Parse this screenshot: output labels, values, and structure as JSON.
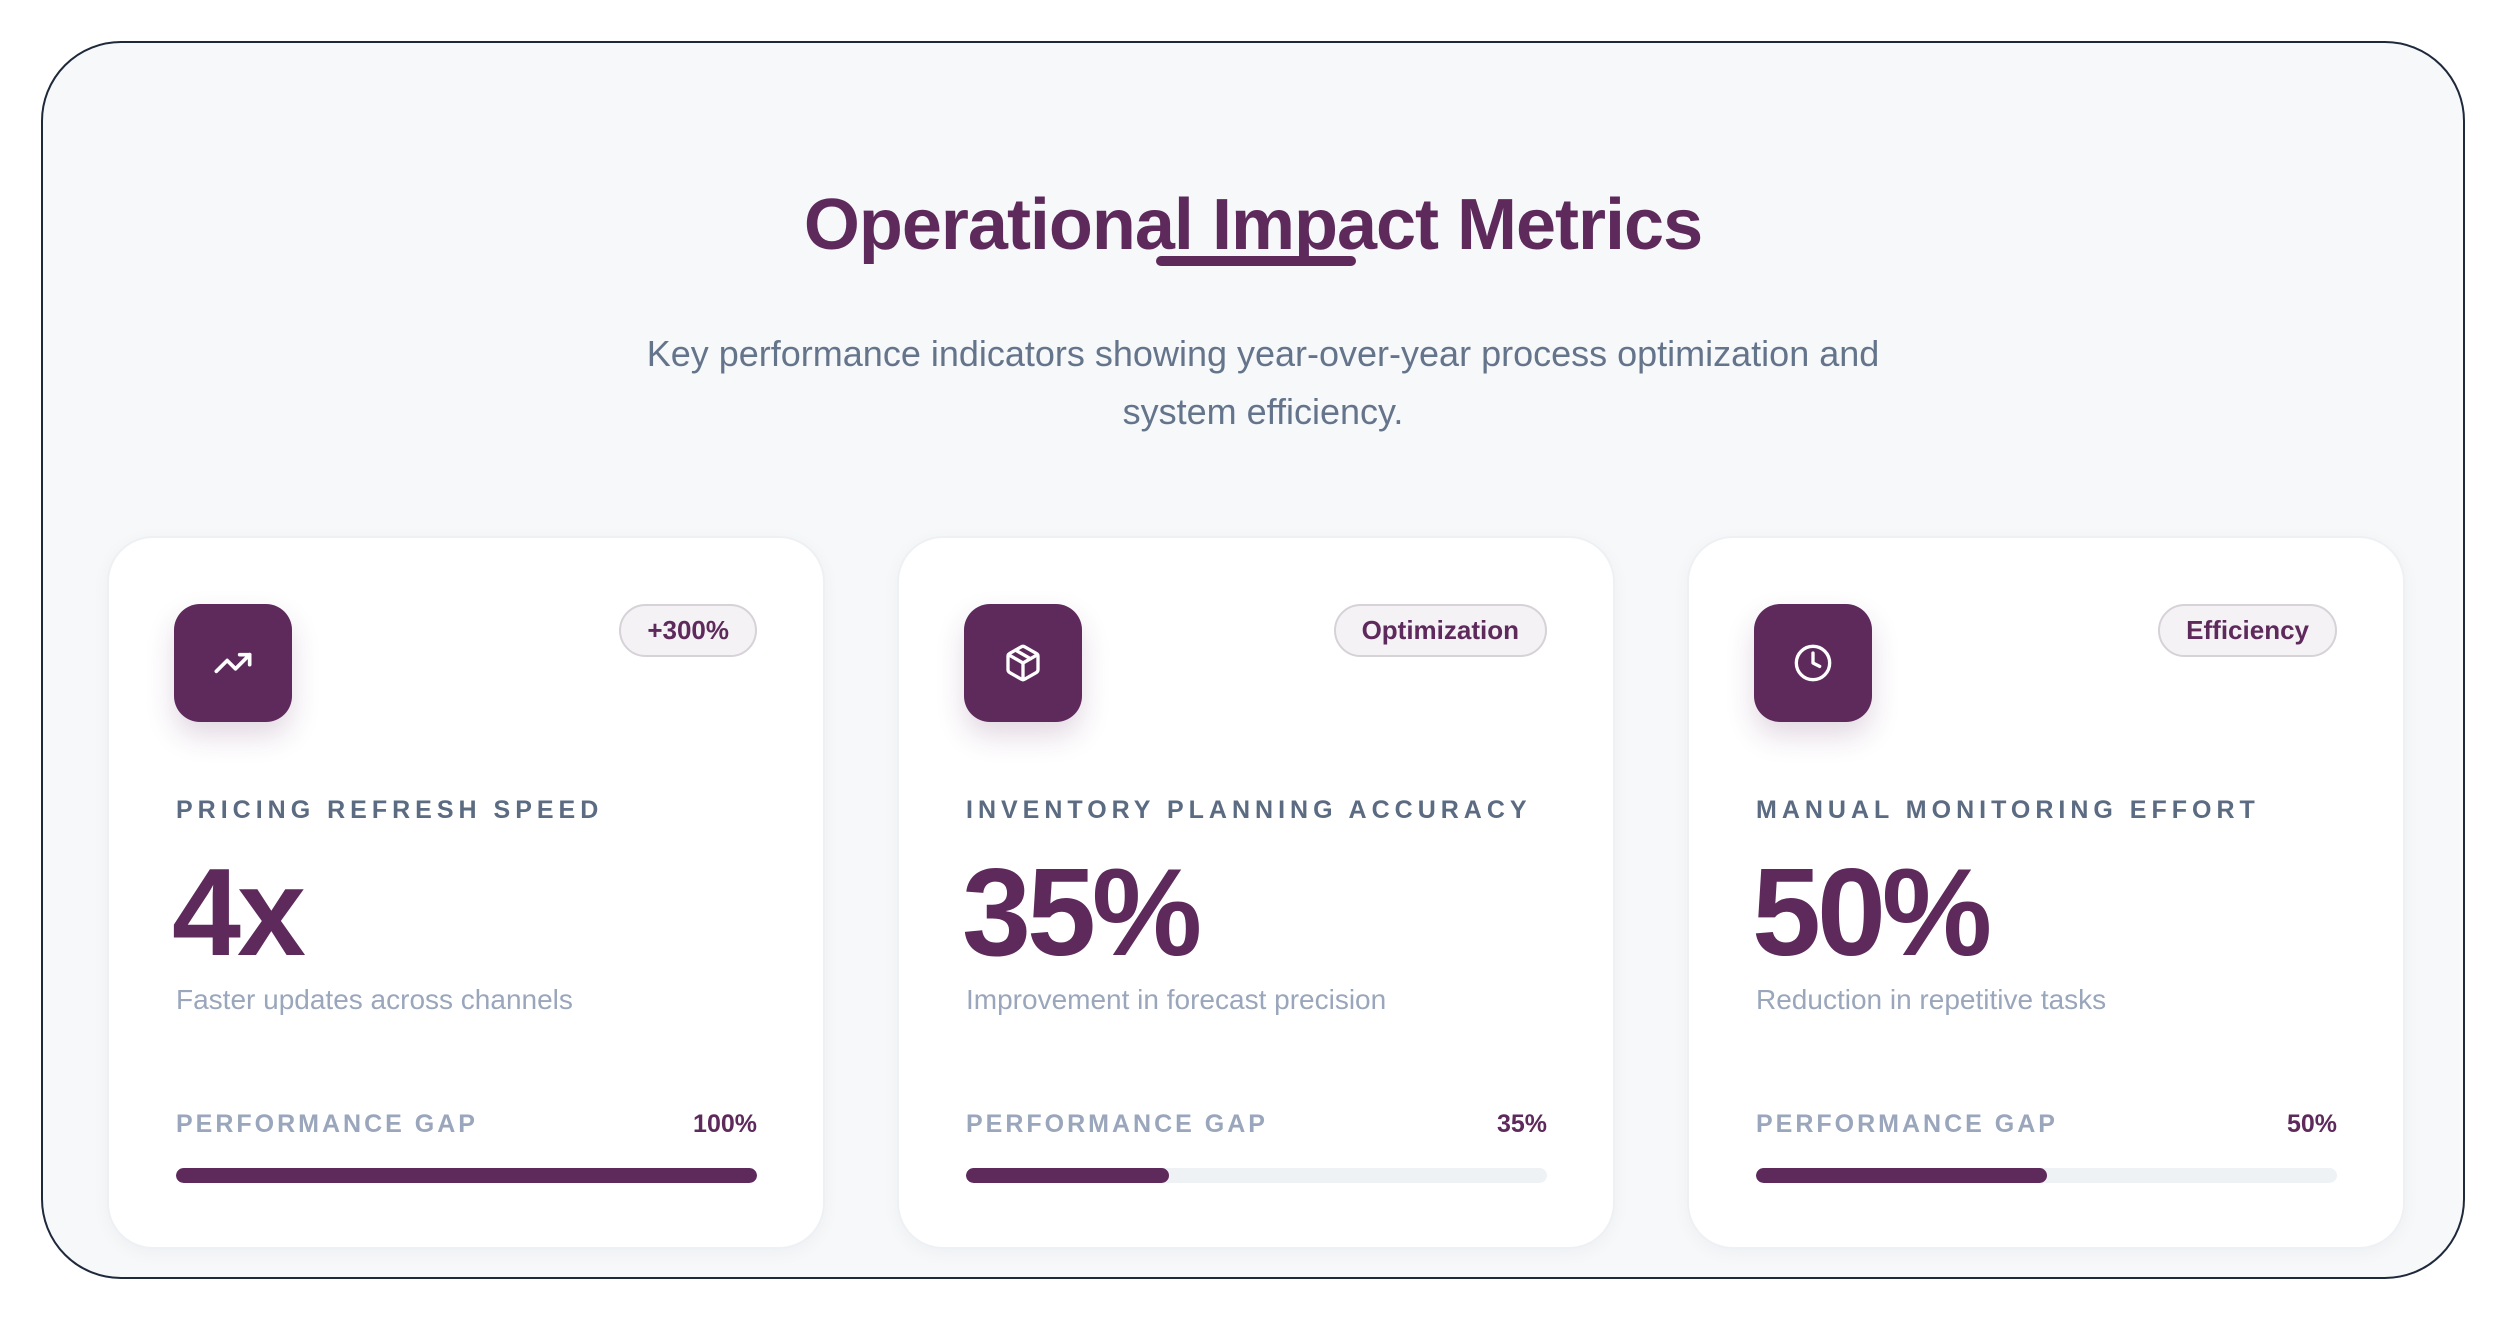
{
  "header": {
    "title": "Operational Impact Metrics",
    "subtitle": "Key performance indicators showing year-over-year process optimization and system efficiency."
  },
  "theme": {
    "accent": "#5e2a5c",
    "background": "#f6f8fa",
    "card": "#ffffff",
    "muted_text": "#64748b",
    "track": "#eff2f5"
  },
  "cards": [
    {
      "icon": "trending-up-icon",
      "badge": "+300%",
      "label": "PRICING REFRESH SPEED",
      "value": "4x",
      "description": "Faster updates across channels",
      "gap_label": "PERFORMANCE GAP",
      "gap_value": "100%",
      "progress": 100
    },
    {
      "icon": "package-icon",
      "badge": "Optimization",
      "label": "INVENTORY PLANNING ACCURACY",
      "value": "35%",
      "description": "Improvement in forecast precision",
      "gap_label": "PERFORMANCE GAP",
      "gap_value": "35%",
      "progress": 35
    },
    {
      "icon": "clock-icon",
      "badge": "Efficiency",
      "label": "MANUAL MONITORING EFFORT",
      "value": "50%",
      "description": "Reduction in repetitive tasks",
      "gap_label": "PERFORMANCE GAP",
      "gap_value": "50%",
      "progress": 50
    }
  ]
}
